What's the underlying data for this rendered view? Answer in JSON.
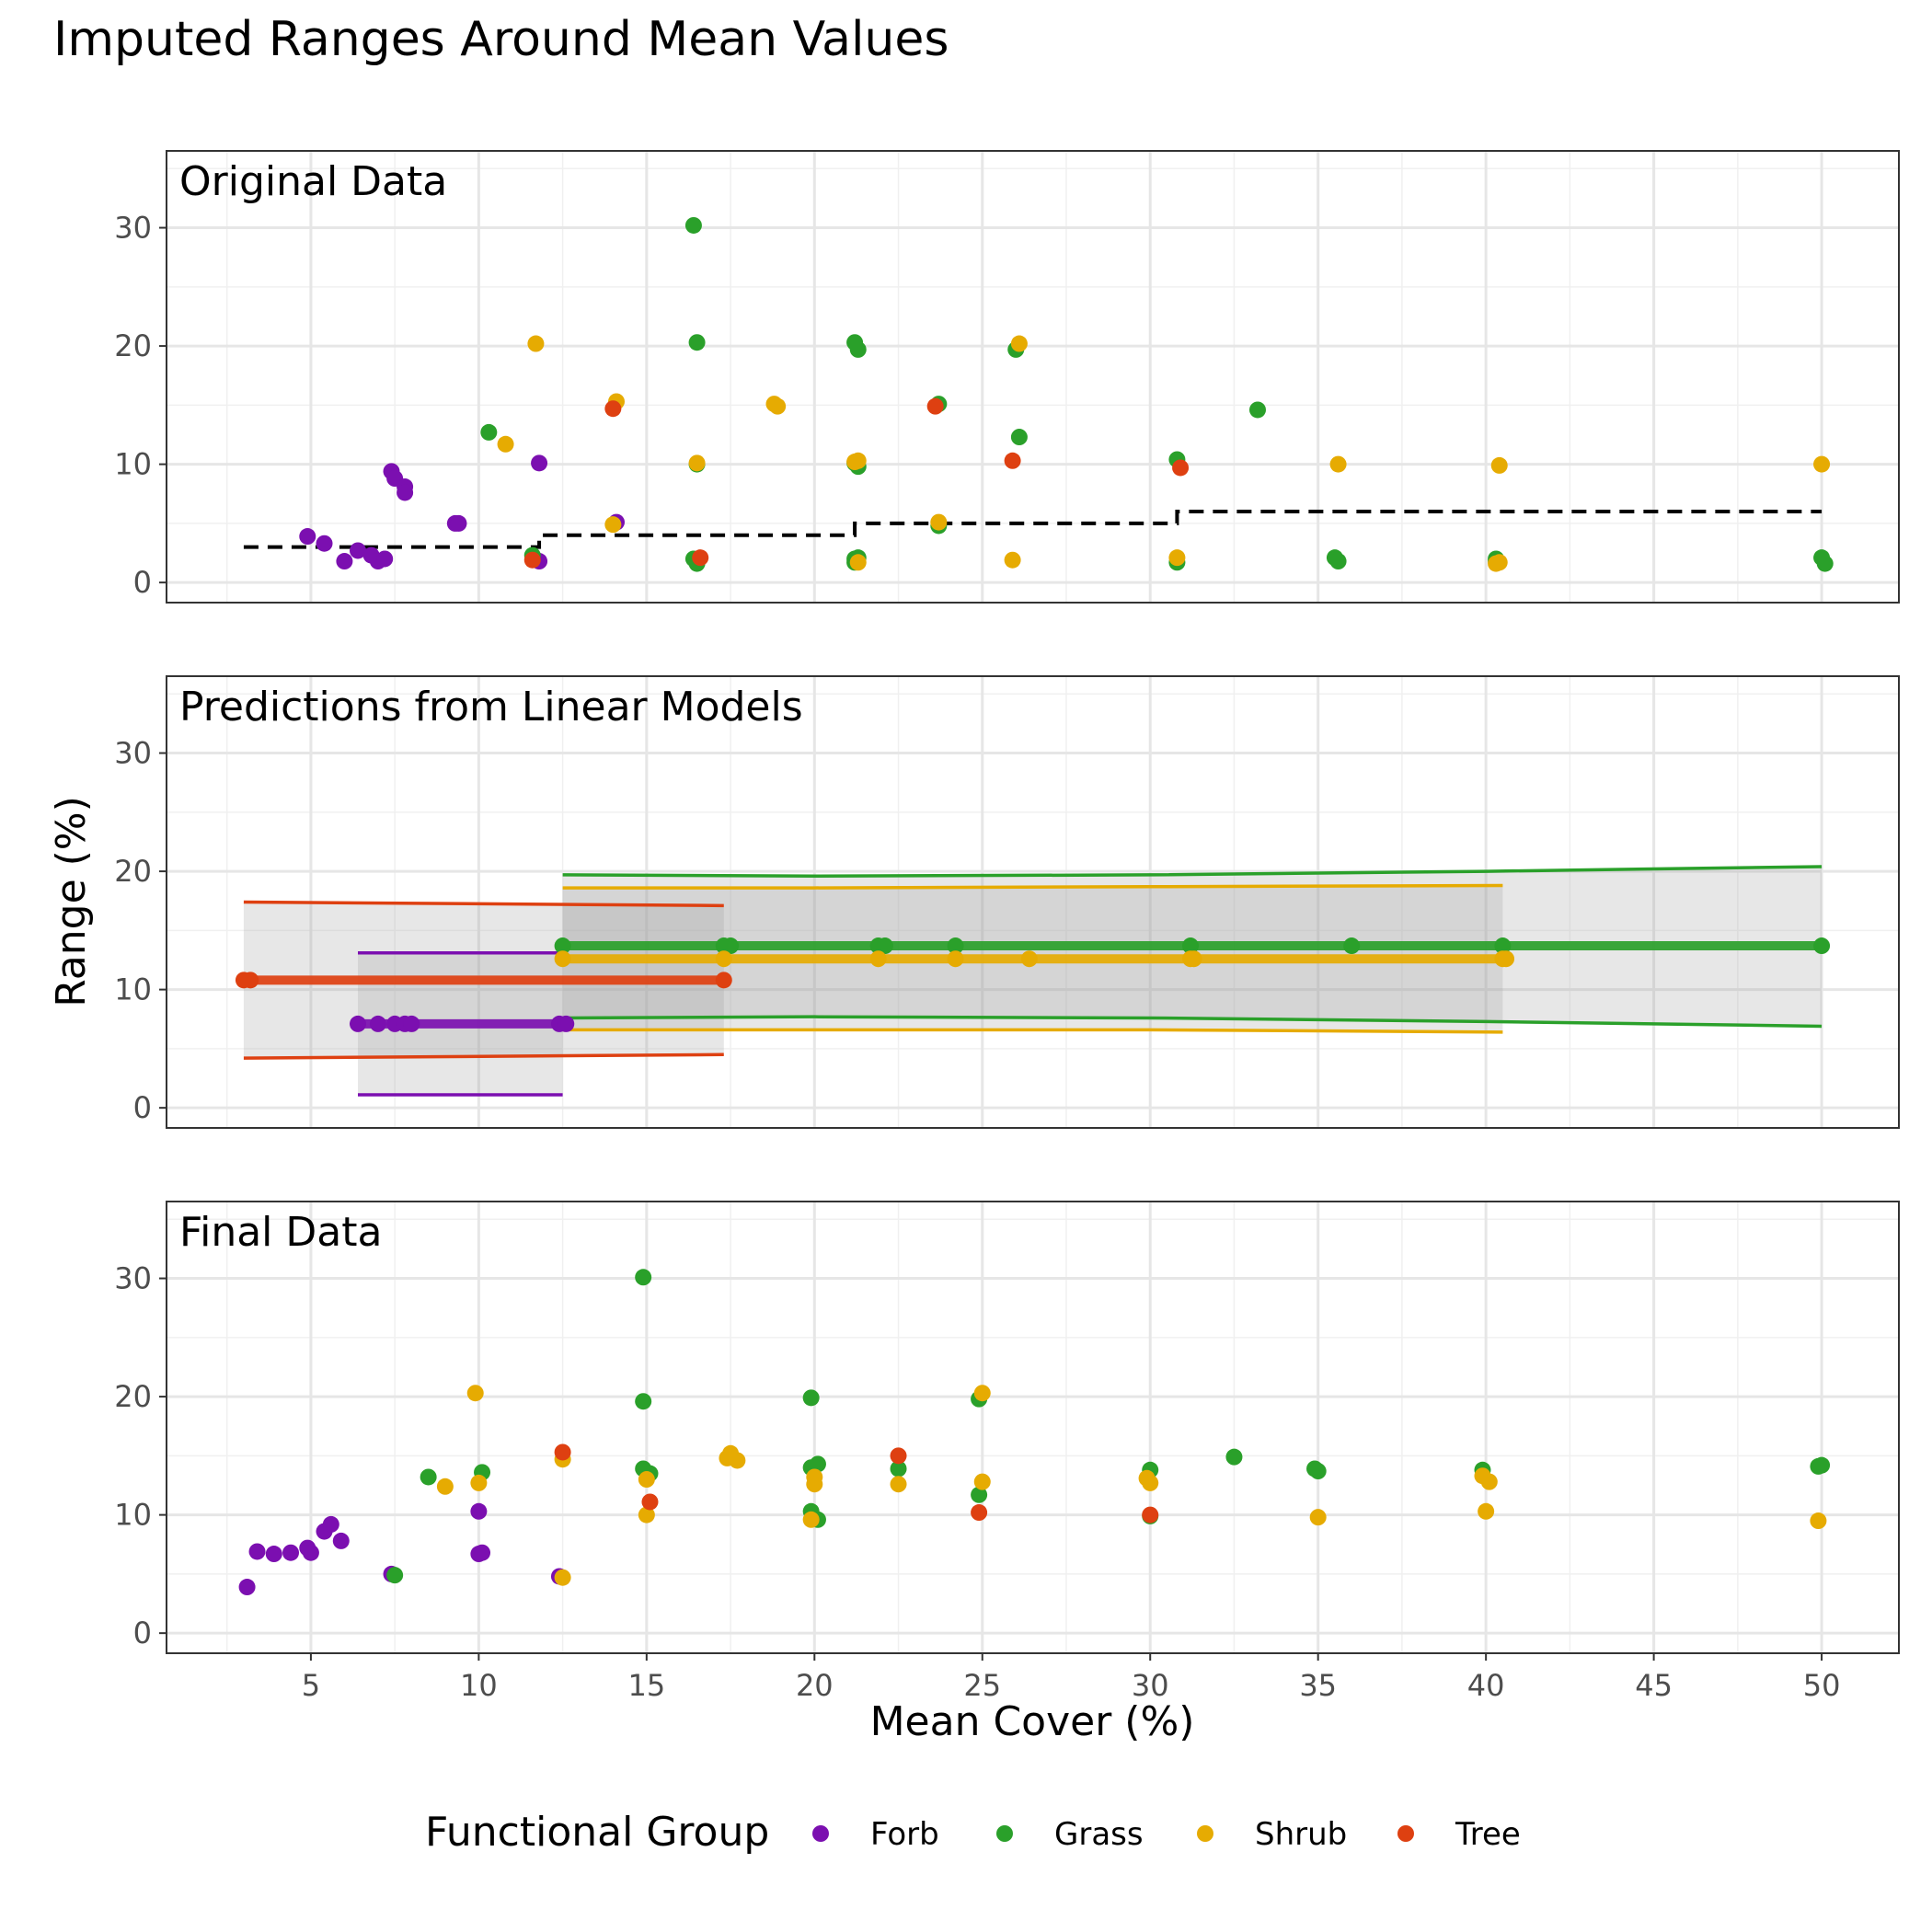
{
  "title": "Imputed Ranges Around Mean Values",
  "xlabel": "Mean Cover (%)",
  "ylabel": "Range (%)",
  "legend": {
    "title": "Functional Group",
    "items": [
      {
        "label": "Forb",
        "color": "#7b0fb0"
      },
      {
        "label": "Grass",
        "color": "#2aa02a"
      },
      {
        "label": "Shrub",
        "color": "#e6ab02"
      },
      {
        "label": "Tree",
        "color": "#de4011"
      }
    ],
    "position": "bottom"
  },
  "chart_data": [
    {
      "type": "scatter",
      "title": "Original Data",
      "xlim": [
        0.7,
        52.3
      ],
      "ylim": [
        -1.7,
        36.5
      ],
      "x_ticks": [
        5,
        10,
        15,
        20,
        25,
        30,
        35,
        40,
        45,
        50
      ],
      "y_ticks": [
        0,
        10,
        20,
        30
      ],
      "grid": true,
      "step_line": {
        "style": "dashed",
        "color": "#000000",
        "points": [
          [
            3,
            3
          ],
          [
            11.8,
            3
          ],
          [
            11.8,
            4
          ],
          [
            21.2,
            4
          ],
          [
            21.2,
            5
          ],
          [
            30.8,
            5
          ],
          [
            30.8,
            6
          ],
          [
            50,
            6
          ]
        ]
      },
      "series": [
        {
          "name": "Forb",
          "color": "#7b0fb0",
          "points": [
            [
              4.9,
              3.9
            ],
            [
              5.4,
              3.3
            ],
            [
              6,
              1.8
            ],
            [
              6.4,
              2.7
            ],
            [
              6.8,
              2.3
            ],
            [
              7,
              1.8
            ],
            [
              7.2,
              2.0
            ],
            [
              7.4,
              9.4
            ],
            [
              7.5,
              8.8
            ],
            [
              7.8,
              8.1
            ],
            [
              7.8,
              7.6
            ],
            [
              9.3,
              5.0
            ],
            [
              9.4,
              5.0
            ],
            [
              11.8,
              10.1
            ],
            [
              11.8,
              1.8
            ],
            [
              14.1,
              5.1
            ]
          ]
        },
        {
          "name": "Grass",
          "color": "#2aa02a",
          "points": [
            [
              10.3,
              12.7
            ],
            [
              11.6,
              2.3
            ],
            [
              16.4,
              30.2
            ],
            [
              16.5,
              20.3
            ],
            [
              16.5,
              10.0
            ],
            [
              16.4,
              2.0
            ],
            [
              16.5,
              1.6
            ],
            [
              21.2,
              20.3
            ],
            [
              21.3,
              19.7
            ],
            [
              21.2,
              10.1
            ],
            [
              21.3,
              9.8
            ],
            [
              21.2,
              2.0
            ],
            [
              21.3,
              2.1
            ],
            [
              21.2,
              1.7
            ],
            [
              23.7,
              15.1
            ],
            [
              23.7,
              4.8
            ],
            [
              26,
              19.7
            ],
            [
              26.1,
              12.3
            ],
            [
              30.8,
              10.4
            ],
            [
              30.8,
              1.7
            ],
            [
              33.2,
              14.6
            ],
            [
              35.5,
              2.1
            ],
            [
              35.6,
              1.8
            ],
            [
              40.3,
              2.0
            ],
            [
              40.3,
              1.8
            ],
            [
              50,
              2.1
            ],
            [
              50.1,
              1.6
            ]
          ]
        },
        {
          "name": "Shrub",
          "color": "#e6ab02",
          "points": [
            [
              10.8,
              11.7
            ],
            [
              11.7,
              20.2
            ],
            [
              14,
              4.9
            ],
            [
              14.1,
              15.3
            ],
            [
              18.8,
              15.1
            ],
            [
              18.9,
              14.9
            ],
            [
              16.5,
              10.1
            ],
            [
              21.2,
              10.2
            ],
            [
              21.3,
              10.3
            ],
            [
              21.3,
              1.7
            ],
            [
              23.7,
              5.1
            ],
            [
              26.1,
              20.2
            ],
            [
              25.9,
              1.9
            ],
            [
              30.8,
              2.1
            ],
            [
              35.6,
              10.0
            ],
            [
              40.4,
              9.9
            ],
            [
              40.3,
              1.6
            ],
            [
              40.4,
              1.7
            ],
            [
              50,
              10.0
            ]
          ]
        },
        {
          "name": "Tree",
          "color": "#de4011",
          "points": [
            [
              11.6,
              1.9
            ],
            [
              14,
              14.7
            ],
            [
              16.6,
              2.1
            ],
            [
              23.6,
              14.9
            ],
            [
              25.9,
              10.3
            ],
            [
              30.9,
              9.7
            ]
          ]
        }
      ]
    },
    {
      "type": "line",
      "title": "Predictions from Linear Models",
      "xlim": [
        0.7,
        52.3
      ],
      "ylim": [
        -1.7,
        36.5
      ],
      "x_ticks": [
        5,
        10,
        15,
        20,
        25,
        30,
        35,
        40,
        45,
        50
      ],
      "y_ticks": [
        0,
        10,
        20,
        30
      ],
      "grid": true,
      "series": [
        {
          "name": "Forb",
          "color": "#7b0fb0",
          "x_range": [
            6.4,
            12.5
          ],
          "fit": 7.1,
          "upper": 13.1,
          "lower": 1.1,
          "points": [
            6.4,
            7.0,
            7.5,
            7.8,
            8.0,
            12.4,
            12.6
          ]
        },
        {
          "name": "Grass",
          "color": "#2aa02a",
          "x_range": [
            12.5,
            50
          ],
          "fit": 13.7,
          "upper_curve": [
            [
              12.5,
              19.7
            ],
            [
              20,
              19.6
            ],
            [
              30,
              19.7
            ],
            [
              40,
              20.0
            ],
            [
              50,
              20.4
            ]
          ],
          "lower_curve": [
            [
              12.5,
              7.6
            ],
            [
              20,
              7.7
            ],
            [
              30,
              7.6
            ],
            [
              40,
              7.3
            ],
            [
              50,
              6.9
            ]
          ],
          "points": [
            12.5,
            17.3,
            17.5,
            21.9,
            22.1,
            24.2,
            31.2,
            36,
            40.5,
            50
          ]
        },
        {
          "name": "Shrub",
          "color": "#e6ab02",
          "x_range": [
            12.5,
            40.5
          ],
          "fit": 12.6,
          "upper_curve": [
            [
              12.5,
              18.6
            ],
            [
              20,
              18.6
            ],
            [
              30,
              18.7
            ],
            [
              40.5,
              18.8
            ]
          ],
          "lower_curve": [
            [
              12.5,
              6.6
            ],
            [
              20,
              6.6
            ],
            [
              30,
              6.6
            ],
            [
              40.5,
              6.4
            ]
          ],
          "points": [
            12.5,
            17.3,
            21.9,
            24.2,
            26.4,
            31.2,
            31.3,
            40.5,
            40.6
          ]
        },
        {
          "name": "Tree",
          "color": "#de4011",
          "x_range": [
            3,
            17.3
          ],
          "fit": 10.8,
          "upper_curve": [
            [
              3,
              17.4
            ],
            [
              17.3,
              17.1
            ]
          ],
          "lower_curve": [
            [
              3,
              4.2
            ],
            [
              17.3,
              4.5
            ]
          ],
          "points": [
            3.0,
            3.2,
            17.3
          ]
        }
      ]
    },
    {
      "type": "scatter",
      "title": "Final Data",
      "xlim": [
        0.7,
        52.3
      ],
      "ylim": [
        -1.7,
        36.5
      ],
      "x_ticks": [
        5,
        10,
        15,
        20,
        25,
        30,
        35,
        40,
        45,
        50
      ],
      "y_ticks": [
        0,
        10,
        20,
        30
      ],
      "grid": true,
      "series": [
        {
          "name": "Forb",
          "color": "#7b0fb0",
          "points": [
            [
              3.1,
              3.9
            ],
            [
              3.4,
              6.9
            ],
            [
              3.9,
              6.7
            ],
            [
              4.4,
              6.8
            ],
            [
              4.9,
              7.2
            ],
            [
              5.0,
              6.8
            ],
            [
              5.4,
              8.6
            ],
            [
              5.6,
              9.2
            ],
            [
              5.9,
              7.8
            ],
            [
              7.4,
              5.0
            ],
            [
              10,
              6.7
            ],
            [
              10.1,
              6.8
            ],
            [
              10.0,
              10.3
            ],
            [
              12.4,
              4.8
            ]
          ]
        },
        {
          "name": "Grass",
          "color": "#2aa02a",
          "points": [
            [
              7.5,
              4.9
            ],
            [
              8.5,
              13.2
            ],
            [
              10.1,
              13.6
            ],
            [
              14.9,
              30.1
            ],
            [
              14.9,
              19.6
            ],
            [
              14.9,
              13.9
            ],
            [
              15.1,
              13.5
            ],
            [
              19.9,
              19.9
            ],
            [
              19.9,
              14.0
            ],
            [
              20.1,
              14.3
            ],
            [
              19.9,
              10.3
            ],
            [
              20.1,
              9.6
            ],
            [
              22.5,
              13.9
            ],
            [
              24.9,
              19.8
            ],
            [
              24.9,
              11.7
            ],
            [
              30,
              13.8
            ],
            [
              30,
              9.9
            ],
            [
              32.5,
              14.9
            ],
            [
              34.9,
              13.9
            ],
            [
              35.0,
              13.7
            ],
            [
              39.9,
              13.8
            ],
            [
              49.9,
              14.1
            ],
            [
              50,
              14.2
            ]
          ]
        },
        {
          "name": "Shrub",
          "color": "#e6ab02",
          "points": [
            [
              9,
              12.4
            ],
            [
              9.9,
              20.3
            ],
            [
              10,
              12.7
            ],
            [
              12.5,
              14.7
            ],
            [
              12.5,
              4.7
            ],
            [
              15.0,
              13.0
            ],
            [
              15.0,
              10.0
            ],
            [
              17.5,
              15.2
            ],
            [
              17.4,
              14.8
            ],
            [
              17.7,
              14.6
            ],
            [
              20.0,
              13.2
            ],
            [
              20.0,
              12.6
            ],
            [
              19.9,
              9.6
            ],
            [
              22.5,
              12.6
            ],
            [
              25.0,
              20.3
            ],
            [
              25.0,
              12.8
            ],
            [
              29.9,
              13.1
            ],
            [
              30.0,
              12.7
            ],
            [
              35,
              9.8
            ],
            [
              39.9,
              13.3
            ],
            [
              40.1,
              12.8
            ],
            [
              40.0,
              10.3
            ],
            [
              49.9,
              9.5
            ]
          ]
        },
        {
          "name": "Tree",
          "color": "#de4011",
          "points": [
            [
              12.5,
              15.3
            ],
            [
              15.1,
              11.1
            ],
            [
              22.5,
              15.0
            ],
            [
              24.9,
              10.2
            ],
            [
              30,
              10.0
            ]
          ]
        }
      ]
    }
  ]
}
